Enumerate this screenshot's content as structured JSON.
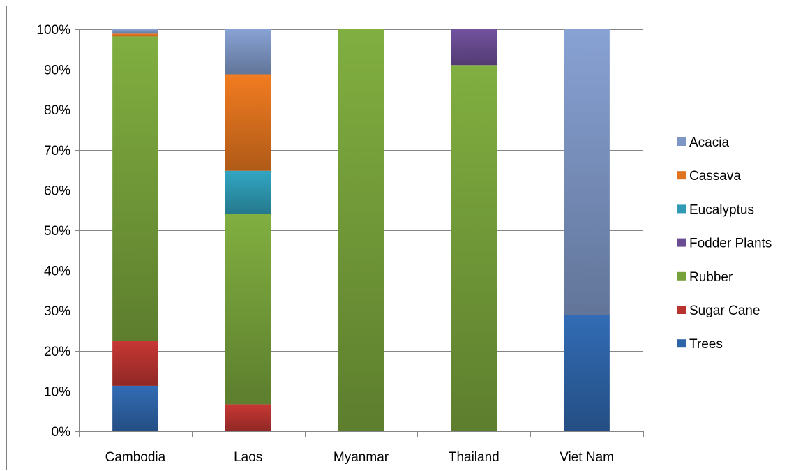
{
  "chart_data": {
    "type": "bar",
    "stacked": true,
    "percent": true,
    "categories": [
      "Cambodia",
      "Laos",
      "Myanmar",
      "Thailand",
      "Viet Nam"
    ],
    "series": [
      {
        "name": "Trees",
        "color": "#2E64A8",
        "values": [
          11.3,
          0,
          0,
          0,
          28.9
        ]
      },
      {
        "name": "Sugar Cane",
        "color": "#B83330",
        "values": [
          11.2,
          6.7,
          0,
          0,
          0
        ]
      },
      {
        "name": "Rubber",
        "color": "#77A23B",
        "values": [
          75.7,
          47.3,
          100,
          91.1,
          0
        ]
      },
      {
        "name": "Fodder Plants",
        "color": "#6A4C93",
        "values": [
          0,
          0,
          0,
          8.9,
          0
        ]
      },
      {
        "name": "Eucalyptus",
        "color": "#2E9AB4",
        "values": [
          0,
          10.8,
          0,
          0,
          0
        ]
      },
      {
        "name": "Cassava",
        "color": "#E0731F",
        "values": [
          0.7,
          24.0,
          0,
          0,
          0
        ]
      },
      {
        "name": "Acacia",
        "color": "#7E96C4",
        "values": [
          1.1,
          11.2,
          0,
          0,
          71.1
        ]
      }
    ],
    "legend_order": [
      "Acacia",
      "Cassava",
      "Eucalyptus",
      "Fodder Plants",
      "Rubber",
      "Sugar Cane",
      "Trees"
    ],
    "y_ticks": [
      "0%",
      "10%",
      "20%",
      "30%",
      "40%",
      "50%",
      "60%",
      "70%",
      "80%",
      "90%",
      "100%"
    ],
    "ylim": [
      0,
      100
    ],
    "grid": true,
    "legend_position": "right",
    "title": "",
    "xlabel": "",
    "ylabel": ""
  }
}
